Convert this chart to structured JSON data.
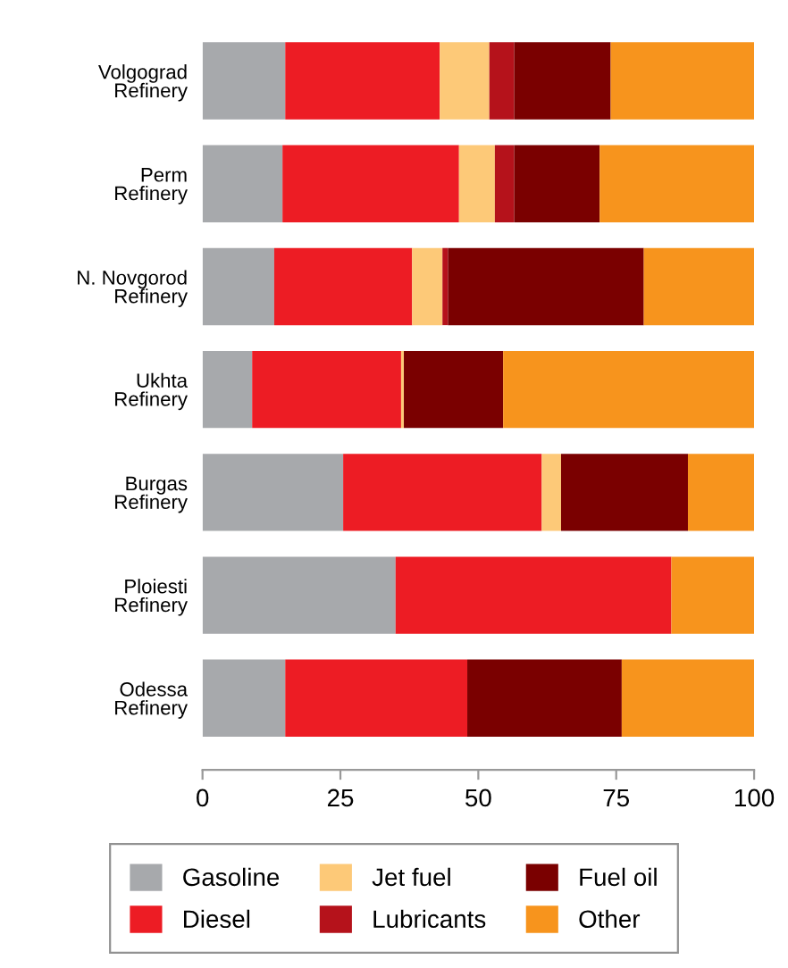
{
  "chart_data": {
    "type": "bar",
    "orientation": "horizontal",
    "stacked": true,
    "categories": [
      "Volgograd\nRefinery",
      "Perm\nRefinery",
      "N. Novgorod\nRefinery",
      "Ukhta\nRefinery",
      "Burgas\nRefinery",
      "Ploiesti\nRefinery",
      "Odessa\nRefinery"
    ],
    "series": [
      {
        "name": "Gasoline",
        "color": "#a7a9ac",
        "values": [
          15,
          14.5,
          13,
          9,
          25.5,
          35,
          15
        ]
      },
      {
        "name": "Diesel",
        "color": "#ed1c24",
        "values": [
          28,
          32,
          25,
          27,
          36,
          50,
          33
        ]
      },
      {
        "name": "Jet fuel",
        "color": "#fdc978",
        "values": [
          9,
          6.5,
          5.5,
          0.5,
          3.5,
          0,
          0
        ]
      },
      {
        "name": "Lubricants",
        "color": "#b5121b",
        "values": [
          4.5,
          3.5,
          1,
          0,
          0,
          0,
          0
        ]
      },
      {
        "name": "Fuel oil",
        "color": "#7a0000",
        "values": [
          17.5,
          15.5,
          35.5,
          18,
          23,
          0,
          28
        ]
      },
      {
        "name": "Other",
        "color": "#f7941d",
        "values": [
          26,
          28,
          20,
          45.5,
          12,
          15,
          24
        ]
      }
    ],
    "xlim": [
      0,
      100
    ],
    "xticks": [
      0,
      25,
      50,
      75,
      100
    ],
    "grid": false,
    "legend": "bottom"
  }
}
